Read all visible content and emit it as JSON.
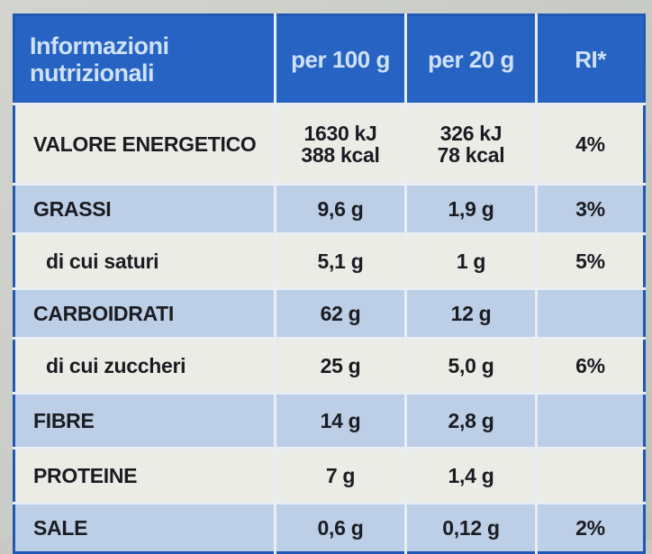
{
  "header": {
    "title_line1": "Informazioni",
    "title_line2": "nutrizionali",
    "col_per100": "per 100 g",
    "col_per20": "per 20 g",
    "col_ri": "RI*"
  },
  "rows": [
    {
      "name": "VALORE ENERGETICO",
      "per100": [
        "1630 kJ",
        "388 kcal"
      ],
      "per20": [
        "326 kJ",
        "78 kcal"
      ],
      "ri": "4%"
    },
    {
      "name": "GRASSI",
      "per100": [
        "9,6 g"
      ],
      "per20": [
        "1,9 g"
      ],
      "ri": "3%"
    },
    {
      "name": "di cui saturi",
      "per100": [
        "5,1 g"
      ],
      "per20": [
        "1 g"
      ],
      "ri": "5%"
    },
    {
      "name": "CARBOIDRATI",
      "per100": [
        "62 g"
      ],
      "per20": [
        "12 g"
      ],
      "ri": ""
    },
    {
      "name": "di cui zuccheri",
      "per100": [
        "25 g"
      ],
      "per20": [
        "5,0 g"
      ],
      "ri": "6%"
    },
    {
      "name": "FIBRE",
      "per100": [
        "14 g"
      ],
      "per20": [
        "2,8 g"
      ],
      "ri": ""
    },
    {
      "name": "PROTEINE",
      "per100": [
        "7 g"
      ],
      "per20": [
        "1,4 g"
      ],
      "ri": ""
    },
    {
      "name": "SALE",
      "per100": [
        "0,6 g"
      ],
      "per20": [
        "0,12 g"
      ],
      "ri": "2%"
    }
  ],
  "colors": {
    "header_blue": "#2663c2",
    "row_light": "#ecece6",
    "row_blue": "#bccfe6"
  }
}
